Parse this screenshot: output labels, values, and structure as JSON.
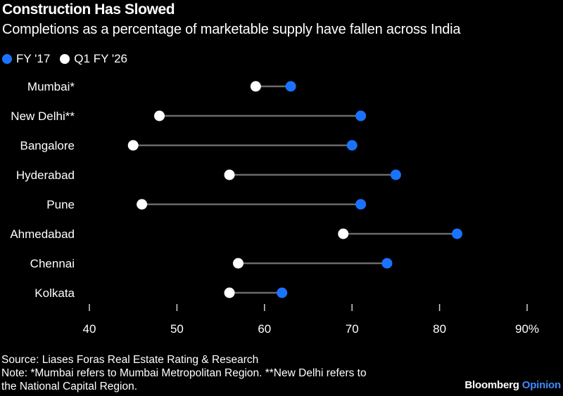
{
  "header": {
    "title": "Construction Has Slowed",
    "subtitle": "Completions as a percentage of marketable supply have fallen across India"
  },
  "legend": [
    {
      "label": "FY '17",
      "color": "#1a73ff"
    },
    {
      "label": "Q1 FY '26",
      "color": "#ffffff"
    }
  ],
  "footer": {
    "source": "Source: Liases Foras Real Estate Rating & Research",
    "note_line1": "Note: *Mumbai refers to Mumbai Metropolitan Region. **New Delhi refers to",
    "note_line2": "the National Capital Region."
  },
  "brand": {
    "name": "Bloomberg",
    "section": "Opinion"
  },
  "colors": {
    "background": "#000000",
    "fy17": "#1a73ff",
    "q1fy26": "#ffffff",
    "connector": "#6b6b6b",
    "text": "#ffffff"
  },
  "chart_data": {
    "type": "dumbbell",
    "title": "Construction Has Slowed",
    "subtitle": "Completions as a percentage of marketable supply have fallen across India",
    "xlabel": "",
    "ylabel": "",
    "xlim": [
      40,
      90
    ],
    "x_ticks": [
      40,
      50,
      60,
      70,
      80,
      90
    ],
    "x_tick_labels": [
      "40",
      "50",
      "60",
      "70",
      "80",
      "90%"
    ],
    "grid": false,
    "legend_position": "top-left",
    "categories": [
      "Mumbai*",
      "New Delhi**",
      "Bangalore",
      "Hyderabad",
      "Pune",
      "Ahmedabad",
      "Chennai",
      "Kolkata"
    ],
    "series": [
      {
        "name": "FY '17",
        "color": "#1a73ff",
        "values": [
          63,
          71,
          70,
          75,
          71,
          82,
          74,
          62
        ]
      },
      {
        "name": "Q1 FY '26",
        "color": "#ffffff",
        "values": [
          59,
          48,
          45,
          56,
          46,
          69,
          57,
          56
        ]
      }
    ]
  }
}
